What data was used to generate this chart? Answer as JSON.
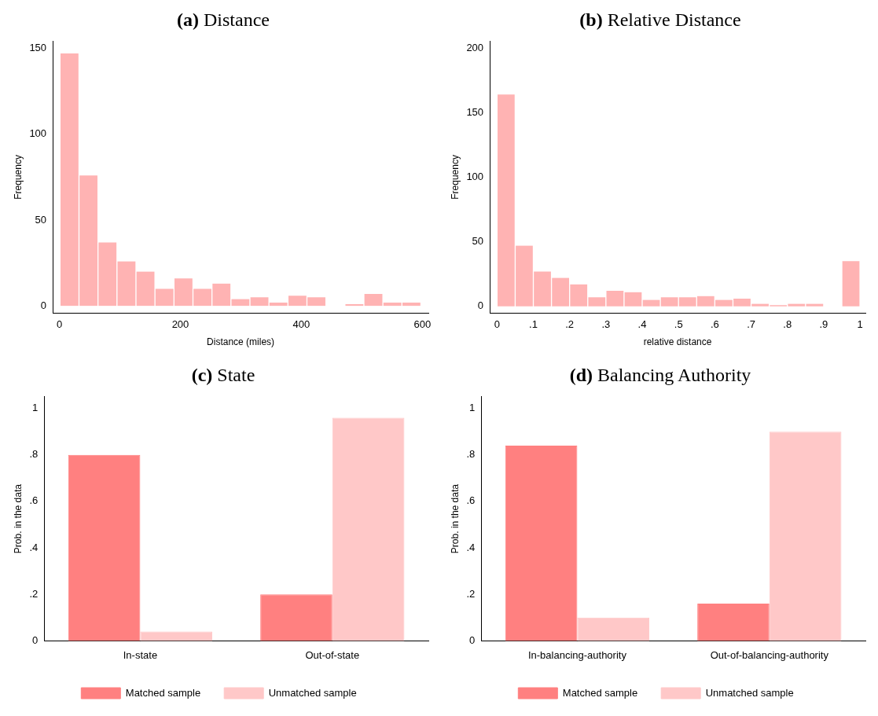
{
  "chart_data": [
    {
      "type": "histogram",
      "title": "(a) Distance",
      "xlabel": "Distance (miles)",
      "ylabel": "Frequency",
      "color": "#ffb3b3",
      "bins": [
        1,
        32.4,
        63.8,
        95.2,
        126.6,
        158,
        189.4,
        220.8,
        252.2,
        283.6,
        315,
        346.4,
        377.8,
        409.2,
        440.6,
        472,
        503.4,
        534.8,
        566.2,
        597.6
      ],
      "values": [
        147,
        76,
        37,
        26,
        20,
        10,
        16,
        10,
        13,
        4,
        5,
        2,
        6,
        5,
        0,
        1,
        7,
        2,
        2
      ],
      "xlim": [
        -11,
        610
      ],
      "xticks": [
        0,
        200,
        400,
        600
      ],
      "ylim": [
        -4,
        154
      ],
      "yticks": [
        0,
        50,
        100,
        150
      ],
      "grid": false
    },
    {
      "type": "histogram",
      "title": "(b) Relative Distance",
      "xlabel": "relative distance",
      "ylabel": "Frequency",
      "color": "#ffb3b3",
      "bins": [
        0,
        0.05,
        0.1,
        0.15,
        0.2,
        0.25,
        0.3,
        0.35,
        0.4,
        0.45,
        0.5,
        0.55,
        0.6,
        0.65,
        0.7,
        0.75,
        0.8,
        0.85,
        0.9,
        0.95,
        1
      ],
      "values": [
        164,
        47,
        27,
        22,
        17,
        7,
        12,
        11,
        5,
        7,
        7,
        8,
        5,
        6,
        2,
        1,
        2,
        2,
        0,
        35
      ],
      "xlim": [
        -0.02,
        1.015
      ],
      "xticks": [
        0,
        {
          "value": 0.1,
          "label": ".1"
        },
        {
          "value": 0.2,
          "label": ".2"
        },
        {
          "value": 0.3,
          "label": ".3"
        },
        {
          "value": 0.4,
          "label": ".4"
        },
        {
          "value": 0.5,
          "label": ".5"
        },
        {
          "value": 0.6,
          "label": ".6"
        },
        {
          "value": 0.7,
          "label": ".7"
        },
        {
          "value": 0.8,
          "label": ".8"
        },
        {
          "value": 0.9,
          "label": ".9"
        },
        1
      ],
      "ylim": [
        -5,
        205
      ],
      "yticks": [
        0,
        50,
        100,
        150,
        200
      ],
      "grid": false
    },
    {
      "type": "bar",
      "title": "(c) State",
      "ylabel": "Prob. in the data",
      "categories": [
        "In-state",
        "Out-of-state"
      ],
      "series": [
        {
          "name": "Matched sample",
          "color": "#ff8080",
          "values": [
            0.8,
            0.2
          ]
        },
        {
          "name": "Unmatched sample",
          "color": "#ffc8c8",
          "values": [
            0.04,
            0.96
          ]
        }
      ],
      "ylim": [
        0,
        1.05
      ],
      "yticks": [
        0,
        {
          "value": 0.2,
          "label": ".2"
        },
        {
          "value": 0.4,
          "label": ".4"
        },
        {
          "value": 0.6,
          "label": ".6"
        },
        {
          "value": 0.8,
          "label": ".8"
        },
        1
      ],
      "grid": false,
      "legend": "bottom"
    },
    {
      "type": "bar",
      "title": "(d) Balancing Authority",
      "ylabel": "Prob. in the data",
      "categories": [
        "In-balancing-authority",
        "Out-of-balancing-authority"
      ],
      "series": [
        {
          "name": "Matched sample",
          "color": "#ff8080",
          "values": [
            0.84,
            0.16
          ]
        },
        {
          "name": "Unmatched sample",
          "color": "#ffc8c8",
          "values": [
            0.1,
            0.9
          ]
        }
      ],
      "ylim": [
        0,
        1.05
      ],
      "yticks": [
        0,
        {
          "value": 0.2,
          "label": ".2"
        },
        {
          "value": 0.4,
          "label": ".4"
        },
        {
          "value": 0.6,
          "label": ".6"
        },
        {
          "value": 0.8,
          "label": ".8"
        },
        1
      ],
      "grid": false,
      "legend": "bottom"
    }
  ]
}
